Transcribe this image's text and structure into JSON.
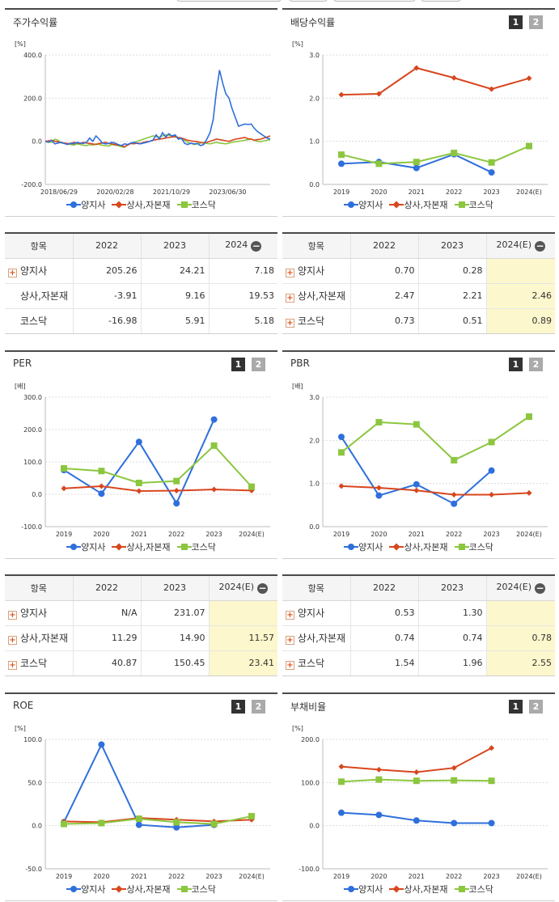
{
  "colors": {
    "yangji": "#2f6fdc",
    "sangsa": "#d8461e",
    "kosdaq": "#8cc63f"
  },
  "legend": {
    "yangji": "양지사",
    "sangsa": "상사,자본재",
    "kosdaq": "코스닥"
  },
  "buttons": {
    "one": "1",
    "two": "2"
  },
  "panels": {
    "stock_return": {
      "title": "주가수익률",
      "unit": "[%]"
    },
    "dividend": {
      "title": "배당수익률",
      "unit": "[%]"
    },
    "per": {
      "title": "PER",
      "unit": "[배]"
    },
    "pbr": {
      "title": "PBR",
      "unit": "[배]"
    },
    "roe": {
      "title": "ROE",
      "unit": "[%]"
    },
    "debt": {
      "title": "부채비율",
      "unit": "[%]"
    }
  },
  "tables": {
    "stock_return": {
      "headers": [
        "항목",
        "2022",
        "2023",
        "2024"
      ],
      "rows": [
        {
          "name": "양지사",
          "plus": true,
          "values": [
            "205.26",
            "24.21",
            "7.18"
          ]
        },
        {
          "name": "상사,자본재",
          "plus": false,
          "values": [
            "-3.91",
            "9.16",
            "19.53"
          ]
        },
        {
          "name": "코스닥",
          "plus": false,
          "values": [
            "-16.98",
            "5.91",
            "5.18"
          ]
        }
      ]
    },
    "dividend": {
      "headers": [
        "항목",
        "2022",
        "2023",
        "2024(E)"
      ],
      "rows": [
        {
          "name": "양지사",
          "plus": true,
          "values": [
            "0.70",
            "0.28",
            ""
          ]
        },
        {
          "name": "상사,자본재",
          "plus": true,
          "values": [
            "2.47",
            "2.21",
            "2.46"
          ]
        },
        {
          "name": "코스닥",
          "plus": true,
          "values": [
            "0.73",
            "0.51",
            "0.89"
          ]
        }
      ]
    },
    "per": {
      "headers": [
        "항목",
        "2022",
        "2023",
        "2024(E)"
      ],
      "rows": [
        {
          "name": "양지사",
          "plus": true,
          "values": [
            "N/A",
            "231.07",
            ""
          ]
        },
        {
          "name": "상사,자본재",
          "plus": true,
          "values": [
            "11.29",
            "14.90",
            "11.57"
          ]
        },
        {
          "name": "코스닥",
          "plus": true,
          "values": [
            "40.87",
            "150.45",
            "23.41"
          ]
        }
      ]
    },
    "pbr": {
      "headers": [
        "항목",
        "2022",
        "2023",
        "2024(E)"
      ],
      "rows": [
        {
          "name": "양지사",
          "plus": true,
          "values": [
            "0.53",
            "1.30",
            ""
          ]
        },
        {
          "name": "상사,자본재",
          "plus": true,
          "values": [
            "0.74",
            "0.74",
            "0.78"
          ]
        },
        {
          "name": "코스닥",
          "plus": true,
          "values": [
            "1.54",
            "1.96",
            "2.55"
          ]
        }
      ]
    }
  },
  "chart_data": [
    {
      "id": "stock_return",
      "type": "line",
      "title": "주가수익률",
      "ylabel": "[%]",
      "ylim": [
        -200,
        400
      ],
      "yticks": [
        "400.0",
        "200.0",
        "0.0",
        "-200.0"
      ],
      "xtick_labels": [
        "2018/06/29",
        "2020/02/28",
        "2021/10/29",
        "2023/06/30"
      ],
      "series": [
        {
          "name": "양지사",
          "values": [
            0,
            -5,
            5,
            -12,
            -8,
            -5,
            -10,
            -15,
            -8,
            -12,
            -5,
            -8,
            -10,
            -5,
            15,
            0,
            25,
            10,
            -8,
            -12,
            -10,
            -5,
            -8,
            -15,
            -20,
            -12,
            -15,
            -8,
            -5,
            -10,
            -12,
            -8,
            -5,
            0,
            5,
            30,
            10,
            40,
            20,
            35,
            25,
            30,
            10,
            15,
            -10,
            -15,
            -8,
            -12,
            -10,
            -20,
            -15,
            10,
            40,
            100,
            230,
            330,
            270,
            220,
            200,
            150,
            110,
            70,
            75,
            80,
            78,
            80,
            60,
            45,
            35,
            25,
            15,
            10
          ]
        },
        {
          "name": "상사,자본재",
          "values": [
            0,
            2,
            5,
            0,
            -2,
            -5,
            -8,
            -10,
            -12,
            -5,
            -8,
            -10,
            -5,
            -8,
            -10,
            -12,
            -15,
            -10,
            -8,
            -5,
            -10,
            -12,
            -15,
            -18,
            -20,
            -25,
            -18,
            -10,
            -12,
            -8,
            -10,
            -5,
            -2,
            0,
            5,
            8,
            10,
            12,
            15,
            18,
            20,
            22,
            18,
            15,
            10,
            5,
            2,
            0,
            -2,
            -5,
            -8,
            -5,
            0,
            5,
            10,
            8,
            5,
            2,
            0,
            5,
            10,
            12,
            15,
            18,
            12,
            10,
            5,
            8,
            10,
            15,
            20,
            25
          ]
        },
        {
          "name": "코스닥",
          "values": [
            0,
            -3,
            -5,
            10,
            5,
            -8,
            -10,
            -12,
            -15,
            -18,
            -12,
            -15,
            -18,
            -20,
            -15,
            -18,
            -12,
            -15,
            -18,
            -20,
            -22,
            -15,
            -18,
            -20,
            -25,
            -28,
            -15,
            -10,
            -5,
            0,
            5,
            10,
            15,
            20,
            25,
            22,
            20,
            25,
            30,
            28,
            25,
            20,
            15,
            10,
            5,
            -5,
            -10,
            -15,
            -12,
            -8,
            -5,
            -10,
            -12,
            -8,
            -5,
            -8,
            -10,
            -12,
            -8,
            -5,
            -2,
            0,
            2,
            5,
            8,
            10,
            5,
            0,
            -2,
            2,
            5,
            8
          ]
        }
      ]
    },
    {
      "id": "dividend",
      "type": "line",
      "title": "배당수익률",
      "ylabel": "[%]",
      "ylim": [
        0,
        3
      ],
      "yticks": [
        "3.0",
        "2.0",
        "1.0",
        "0.0"
      ],
      "categories": [
        "2019",
        "2020",
        "2021",
        "2022",
        "2023",
        "2024(E)"
      ],
      "series": [
        {
          "name": "양지사",
          "values": [
            0.48,
            0.52,
            0.38,
            0.7,
            0.28,
            null
          ]
        },
        {
          "name": "상사,자본재",
          "values": [
            2.08,
            2.1,
            2.7,
            2.47,
            2.21,
            2.46
          ]
        },
        {
          "name": "코스닥",
          "values": [
            0.69,
            0.48,
            0.52,
            0.73,
            0.51,
            0.89
          ]
        }
      ]
    },
    {
      "id": "per",
      "type": "line",
      "title": "PER",
      "ylabel": "[배]",
      "ylim": [
        -100,
        300
      ],
      "yticks": [
        "300.0",
        "200.0",
        "100.0",
        "0.0",
        "-100.0"
      ],
      "categories": [
        "2019",
        "2020",
        "2021",
        "2022",
        "2023",
        "2024(E)"
      ],
      "series": [
        {
          "name": "양지사",
          "values": [
            75,
            2,
            162,
            -28,
            231.07,
            null
          ]
        },
        {
          "name": "상사,자본재",
          "values": [
            18,
            25,
            10,
            11.29,
            14.9,
            11.57
          ]
        },
        {
          "name": "코스닥",
          "values": [
            80,
            72,
            35,
            40.87,
            150.45,
            23.41
          ]
        }
      ]
    },
    {
      "id": "pbr",
      "type": "line",
      "title": "PBR",
      "ylabel": "[배]",
      "ylim": [
        0,
        3
      ],
      "yticks": [
        "3.0",
        "2.0",
        "1.0",
        "0.0"
      ],
      "categories": [
        "2019",
        "2020",
        "2021",
        "2022",
        "2023",
        "2024(E)"
      ],
      "series": [
        {
          "name": "양지사",
          "values": [
            2.08,
            0.72,
            0.98,
            0.53,
            1.3,
            null
          ]
        },
        {
          "name": "상사,자본재",
          "values": [
            0.94,
            0.9,
            0.84,
            0.74,
            0.74,
            0.78
          ]
        },
        {
          "name": "코스닥",
          "values": [
            1.72,
            2.42,
            2.37,
            1.54,
            1.96,
            2.55
          ]
        }
      ]
    },
    {
      "id": "roe",
      "type": "line",
      "title": "ROE",
      "ylabel": "[%]",
      "ylim": [
        -50,
        100
      ],
      "yticks": [
        "100.0",
        "50.0",
        "0.0",
        "-50.0"
      ],
      "categories": [
        "2019",
        "2020",
        "2021",
        "2022",
        "2023",
        "2024(E)"
      ],
      "series": [
        {
          "name": "양지사",
          "values": [
            4,
            94,
            1,
            -2,
            1,
            null
          ]
        },
        {
          "name": "상사,자본재",
          "values": [
            5,
            4,
            9,
            7,
            5,
            7
          ]
        },
        {
          "name": "코스닥",
          "values": [
            2,
            3,
            8,
            4,
            2,
            11
          ]
        }
      ]
    },
    {
      "id": "debt",
      "type": "line",
      "title": "부채비율",
      "ylabel": "[%]",
      "ylim": [
        -100,
        200
      ],
      "yticks": [
        "200.0",
        "100.0",
        "0.0",
        "-100.0"
      ],
      "categories": [
        "2019",
        "2020",
        "2021",
        "2022",
        "2023",
        "2024(E)"
      ],
      "series": [
        {
          "name": "양지사",
          "values": [
            30,
            25,
            12,
            6,
            6,
            null
          ]
        },
        {
          "name": "상사,자본재",
          "values": [
            137,
            130,
            124,
            134,
            180,
            null
          ]
        },
        {
          "name": "코스닥",
          "values": [
            102,
            107,
            104,
            105,
            104,
            null
          ]
        }
      ]
    }
  ]
}
